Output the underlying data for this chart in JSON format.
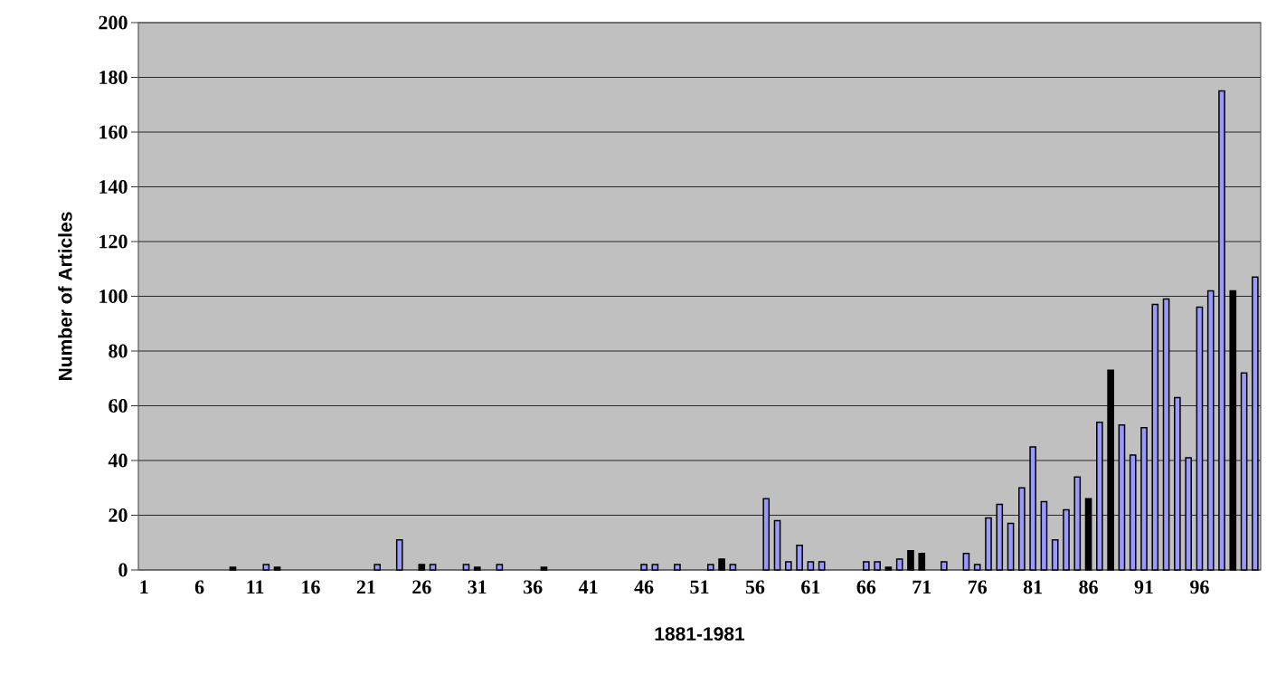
{
  "chart_data": {
    "type": "bar",
    "xlabel": "1881-1981",
    "ylabel": "Number of Articles",
    "categories": [
      "1",
      null,
      null,
      null,
      null,
      "6",
      null,
      null,
      null,
      null,
      "11",
      null,
      null,
      null,
      null,
      "16",
      null,
      null,
      null,
      null,
      "21",
      null,
      null,
      null,
      null,
      "26",
      null,
      null,
      null,
      null,
      "31",
      null,
      null,
      null,
      null,
      "36",
      null,
      null,
      null,
      null,
      "41",
      null,
      null,
      null,
      null,
      "46",
      null,
      null,
      null,
      null,
      "51",
      null,
      null,
      null,
      null,
      "56",
      null,
      null,
      null,
      null,
      "61",
      null,
      null,
      null,
      null,
      "66",
      null,
      null,
      null,
      null,
      "71",
      null,
      null,
      null,
      null,
      "76",
      null,
      null,
      null,
      null,
      "81",
      null,
      null,
      null,
      null,
      "86",
      null,
      null,
      null,
      null,
      "91",
      null,
      null,
      null,
      null,
      "96",
      null,
      null,
      null,
      null,
      null
    ],
    "values": [
      0,
      0,
      0,
      0,
      0,
      0,
      0,
      0,
      1,
      0,
      0,
      2,
      1,
      0,
      0,
      0,
      0,
      0,
      0,
      0,
      0,
      2,
      0,
      11,
      0,
      2,
      2,
      0,
      0,
      2,
      1,
      0,
      2,
      0,
      0,
      0,
      1,
      0,
      0,
      0,
      0,
      0,
      0,
      0,
      0,
      2,
      2,
      0,
      2,
      0,
      0,
      2,
      4,
      2,
      0,
      0,
      26,
      18,
      3,
      9,
      3,
      3,
      0,
      0,
      0,
      3,
      3,
      1,
      4,
      7,
      6,
      0,
      3,
      0,
      6,
      2,
      19,
      24,
      17,
      30,
      45,
      25,
      11,
      22,
      34,
      26,
      54,
      73,
      53,
      42,
      52,
      97,
      99,
      63,
      41,
      96,
      102,
      175,
      102,
      72,
      107
    ],
    "colors": [
      "#9999ff",
      "#9999ff",
      "#9999ff",
      "#9999ff",
      "#9999ff",
      "#9999ff",
      "#9999ff",
      "#9999ff",
      "#000000",
      "#9999ff",
      "#9999ff",
      "#9999ff",
      "#000000",
      "#9999ff",
      "#9999ff",
      "#9999ff",
      "#9999ff",
      "#9999ff",
      "#9999ff",
      "#9999ff",
      "#9999ff",
      "#9999ff",
      "#9999ff",
      "#9999ff",
      "#9999ff",
      "#000000",
      "#9999ff",
      "#9999ff",
      "#9999ff",
      "#9999ff",
      "#000000",
      "#9999ff",
      "#9999ff",
      "#9999ff",
      "#9999ff",
      "#9999ff",
      "#000000",
      "#9999ff",
      "#9999ff",
      "#9999ff",
      "#9999ff",
      "#9999ff",
      "#9999ff",
      "#9999ff",
      "#9999ff",
      "#9999ff",
      "#9999ff",
      "#9999ff",
      "#9999ff",
      "#9999ff",
      "#9999ff",
      "#9999ff",
      "#000000",
      "#9999ff",
      "#9999ff",
      "#9999ff",
      "#9999ff",
      "#9999ff",
      "#9999ff",
      "#9999ff",
      "#9999ff",
      "#9999ff",
      "#9999ff",
      "#9999ff",
      "#9999ff",
      "#9999ff",
      "#9999ff",
      "#000000",
      "#9999ff",
      "#000000",
      "#000000",
      "#9999ff",
      "#9999ff",
      "#9999ff",
      "#9999ff",
      "#9999ff",
      "#9999ff",
      "#9999ff",
      "#9999ff",
      "#9999ff",
      "#9999ff",
      "#9999ff",
      "#9999ff",
      "#9999ff",
      "#9999ff",
      "#000000",
      "#9999ff",
      "#000000",
      "#9999ff",
      "#9999ff",
      "#9999ff",
      "#9999ff",
      "#9999ff",
      "#9999ff",
      "#9999ff",
      "#9999ff",
      "#9999ff",
      "#9999ff",
      "#000000",
      "#9999ff",
      "#9999ff"
    ],
    "ylim": [
      0,
      200
    ],
    "yticks": [
      0,
      20,
      40,
      60,
      80,
      100,
      120,
      140,
      160,
      180,
      200
    ],
    "grid": "y"
  }
}
